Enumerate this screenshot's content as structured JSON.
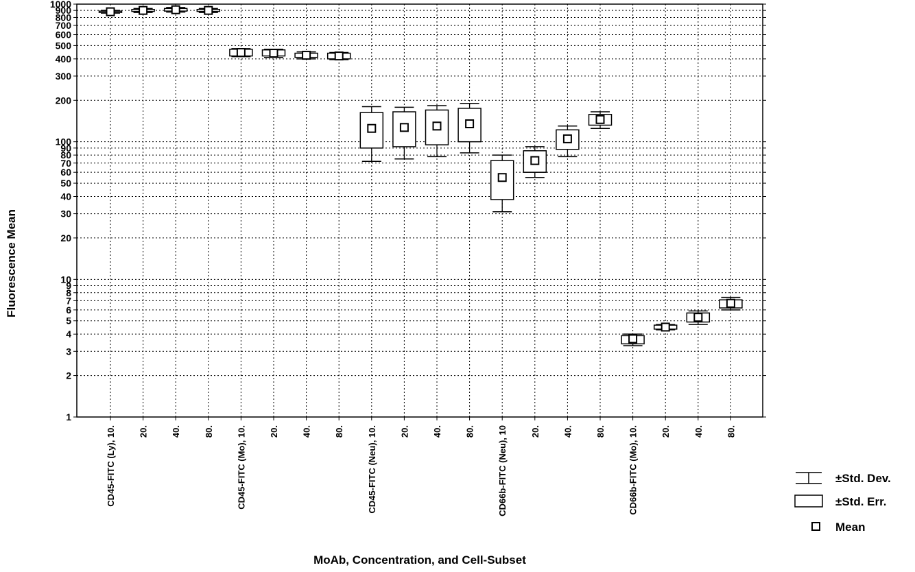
{
  "chart_data": {
    "type": "box",
    "title": "",
    "xlabel": "MoAb, Concentration, and Cell-Subset",
    "ylabel": "Fluorescence Mean",
    "yscale": "log",
    "ylim": [
      1,
      1000
    ],
    "y_ticks": [
      {
        "value": 1,
        "label": "1"
      },
      {
        "value": 2,
        "label": "2"
      },
      {
        "value": 3,
        "label": "3"
      },
      {
        "value": 4,
        "label": "4"
      },
      {
        "value": 5,
        "label": "5"
      },
      {
        "value": 6,
        "label": "6"
      },
      {
        "value": 7,
        "label": "7"
      },
      {
        "value": 8,
        "label": "8"
      },
      {
        "value": 9,
        "label": "9"
      },
      {
        "value": 10,
        "label": "10"
      },
      {
        "value": 20,
        "label": "20"
      },
      {
        "value": 30,
        "label": "30"
      },
      {
        "value": 40,
        "label": "40"
      },
      {
        "value": 50,
        "label": "50"
      },
      {
        "value": 60,
        "label": "60"
      },
      {
        "value": 70,
        "label": "70"
      },
      {
        "value": 80,
        "label": "80"
      },
      {
        "value": 90,
        "label": "90"
      },
      {
        "value": 100,
        "label": "100"
      },
      {
        "value": 200,
        "label": "200"
      },
      {
        "value": 300,
        "label": "300"
      },
      {
        "value": 400,
        "label": "400"
      },
      {
        "value": 500,
        "label": "500"
      },
      {
        "value": 600,
        "label": "600"
      },
      {
        "value": 700,
        "label": "700"
      },
      {
        "value": 800,
        "label": "800"
      },
      {
        "value": 900,
        "label": "900"
      },
      {
        "value": 1000,
        "label": "1000"
      }
    ],
    "grid": true,
    "legend_position": "bottom-right",
    "legend": [
      {
        "symbol": "whisker",
        "label": "±Std. Dev."
      },
      {
        "symbol": "box",
        "label": "±Std. Err."
      },
      {
        "symbol": "mean",
        "label": "Mean"
      }
    ],
    "categories": [
      "CD45-FITC (Ly), 10.",
      "20.",
      "40.",
      "80.",
      "CD45-FITC (Mo), 10.",
      "20.",
      "40.",
      "80.",
      "CD45-FITC (Neu), 10.",
      "20.",
      "40.",
      "80.",
      "CD66b-FITC (Neu), 10",
      "20.",
      "40.",
      "80.",
      "CD66b-FITC (Mo), 10.",
      "20.",
      "40.",
      "80."
    ],
    "boxes": [
      {
        "mean": 880,
        "se_low": 870,
        "se_high": 890,
        "sd_low": 860,
        "sd_high": 900
      },
      {
        "mean": 900,
        "se_low": 885,
        "se_high": 915,
        "sd_low": 870,
        "sd_high": 930
      },
      {
        "mean": 910,
        "se_low": 890,
        "se_high": 930,
        "sd_low": 875,
        "sd_high": 945
      },
      {
        "mean": 900,
        "se_low": 885,
        "se_high": 915,
        "sd_low": 870,
        "sd_high": 930
      },
      {
        "mean": 445,
        "se_low": 420,
        "se_high": 470,
        "sd_low": 415,
        "sd_high": 475
      },
      {
        "mean": 440,
        "se_low": 420,
        "se_high": 465,
        "sd_low": 410,
        "sd_high": 470
      },
      {
        "mean": 425,
        "se_low": 410,
        "se_high": 440,
        "sd_low": 400,
        "sd_high": 450
      },
      {
        "mean": 420,
        "se_low": 400,
        "se_high": 440,
        "sd_low": 395,
        "sd_high": 445
      },
      {
        "mean": 125,
        "se_low": 90,
        "se_high": 163,
        "sd_low": 72,
        "sd_high": 180
      },
      {
        "mean": 127,
        "se_low": 92,
        "se_high": 165,
        "sd_low": 75,
        "sd_high": 178
      },
      {
        "mean": 130,
        "se_low": 95,
        "se_high": 170,
        "sd_low": 78,
        "sd_high": 183
      },
      {
        "mean": 135,
        "se_low": 100,
        "se_high": 175,
        "sd_low": 83,
        "sd_high": 190
      },
      {
        "mean": 55,
        "se_low": 38,
        "se_high": 73,
        "sd_low": 31,
        "sd_high": 80
      },
      {
        "mean": 73,
        "se_low": 60,
        "se_high": 86,
        "sd_low": 55,
        "sd_high": 92
      },
      {
        "mean": 105,
        "se_low": 88,
        "se_high": 122,
        "sd_low": 78,
        "sd_high": 130
      },
      {
        "mean": 145,
        "se_low": 132,
        "se_high": 158,
        "sd_low": 125,
        "sd_high": 165
      },
      {
        "mean": 3.7,
        "se_low": 3.4,
        "se_high": 3.9,
        "sd_low": 3.3,
        "sd_high": 4.0
      },
      {
        "mean": 4.5,
        "se_low": 4.35,
        "se_high": 4.65,
        "sd_low": 4.3,
        "sd_high": 4.7
      },
      {
        "mean": 5.3,
        "se_low": 4.9,
        "se_high": 5.7,
        "sd_low": 4.7,
        "sd_high": 5.9
      },
      {
        "mean": 6.7,
        "se_low": 6.2,
        "se_high": 7.1,
        "sd_low": 6.0,
        "sd_high": 7.4
      }
    ]
  }
}
